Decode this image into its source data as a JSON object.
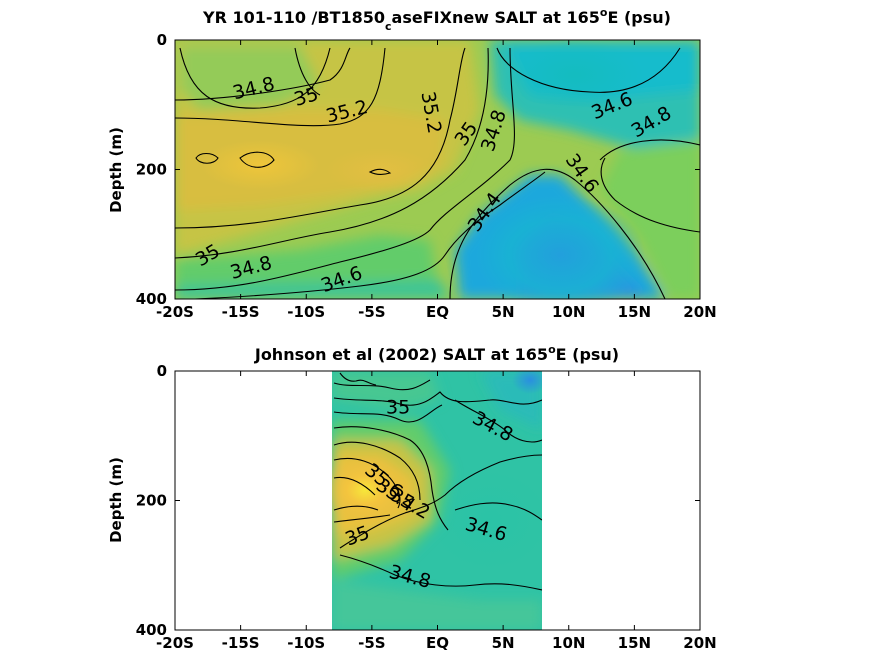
{
  "figure": {
    "panels": [
      {
        "id": "model",
        "title_main": "YR 101-110 /BT1850",
        "title_sub": "c",
        "title_rest": "aseFIXnew SALT at 165",
        "title_sup": "o",
        "title_end": "E (psu)",
        "ylabel": "Depth (m)"
      },
      {
        "id": "obs",
        "title_main": "Johnson et al (2002) SALT at 165",
        "title_sup": "o",
        "title_end": "E (psu)",
        "ylabel": "Depth (m)"
      }
    ]
  },
  "chart_data": [
    {
      "type": "heatmap",
      "subtype": "filled contour",
      "x_ticks": [
        -20,
        -15,
        -10,
        -5,
        0,
        5,
        10,
        15,
        20
      ],
      "x_tick_labels": [
        "-20S",
        "-15S",
        "-10S",
        "-5S",
        "EQ",
        "5N",
        "10N",
        "15N",
        "20N"
      ],
      "y_ticks": [
        0,
        200,
        400
      ],
      "y_tick_labels": [
        "0",
        "200",
        "400"
      ],
      "xlim": [
        -20,
        20
      ],
      "ylim": [
        0,
        400
      ],
      "y_reversed": true,
      "colormap": "parula",
      "contour_labels": [
        {
          "value": "34.8",
          "x": -14,
          "y": 75
        },
        {
          "value": "35",
          "x": -10,
          "y": 88
        },
        {
          "value": "35.2",
          "x": -6.9,
          "y": 111
        },
        {
          "value": "35.2",
          "x": -0.5,
          "y": 112
        },
        {
          "value": "35",
          "x": 2.2,
          "y": 145
        },
        {
          "value": "34.8",
          "x": 4.3,
          "y": 140
        },
        {
          "value": "34.6",
          "x": 13.3,
          "y": 102
        },
        {
          "value": "34.8",
          "x": 16.3,
          "y": 127
        },
        {
          "value": "34.6",
          "x": 11.0,
          "y": 206
        },
        {
          "value": "34.4",
          "x": 3.6,
          "y": 266
        },
        {
          "value": "35",
          "x": -17.5,
          "y": 333
        },
        {
          "value": "34.8",
          "x": -14.2,
          "y": 352
        },
        {
          "value": "34.6",
          "x": -7.3,
          "y": 370
        }
      ]
    },
    {
      "type": "heatmap",
      "subtype": "filled contour",
      "x_ticks": [
        -20,
        -15,
        -10,
        -5,
        0,
        5,
        10,
        15,
        20
      ],
      "x_tick_labels": [
        "-20S",
        "-15S",
        "-10S",
        "-5S",
        "EQ",
        "5N",
        "10N",
        "15N",
        "20N"
      ],
      "y_ticks": [
        0,
        200,
        400
      ],
      "y_tick_labels": [
        "0",
        "200",
        "400"
      ],
      "xlim": [
        -20,
        20
      ],
      "ylim": [
        0,
        400
      ],
      "y_reversed": true,
      "data_xlim": [
        -8,
        8
      ],
      "colormap": "parula",
      "contour_labels": [
        {
          "value": "35",
          "x": -3,
          "y": 56
        },
        {
          "value": "34.8",
          "x": 4.2,
          "y": 86
        },
        {
          "value": "35.6",
          "x": -4.1,
          "y": 170
        },
        {
          "value": "35.4",
          "x": -3.2,
          "y": 192
        },
        {
          "value": "35.2",
          "x": -2.1,
          "y": 205
        },
        {
          "value": "35",
          "x": -6.1,
          "y": 255
        },
        {
          "value": "34.6",
          "x": 3.7,
          "y": 245
        },
        {
          "value": "34.8",
          "x": -2.1,
          "y": 318
        }
      ]
    }
  ]
}
